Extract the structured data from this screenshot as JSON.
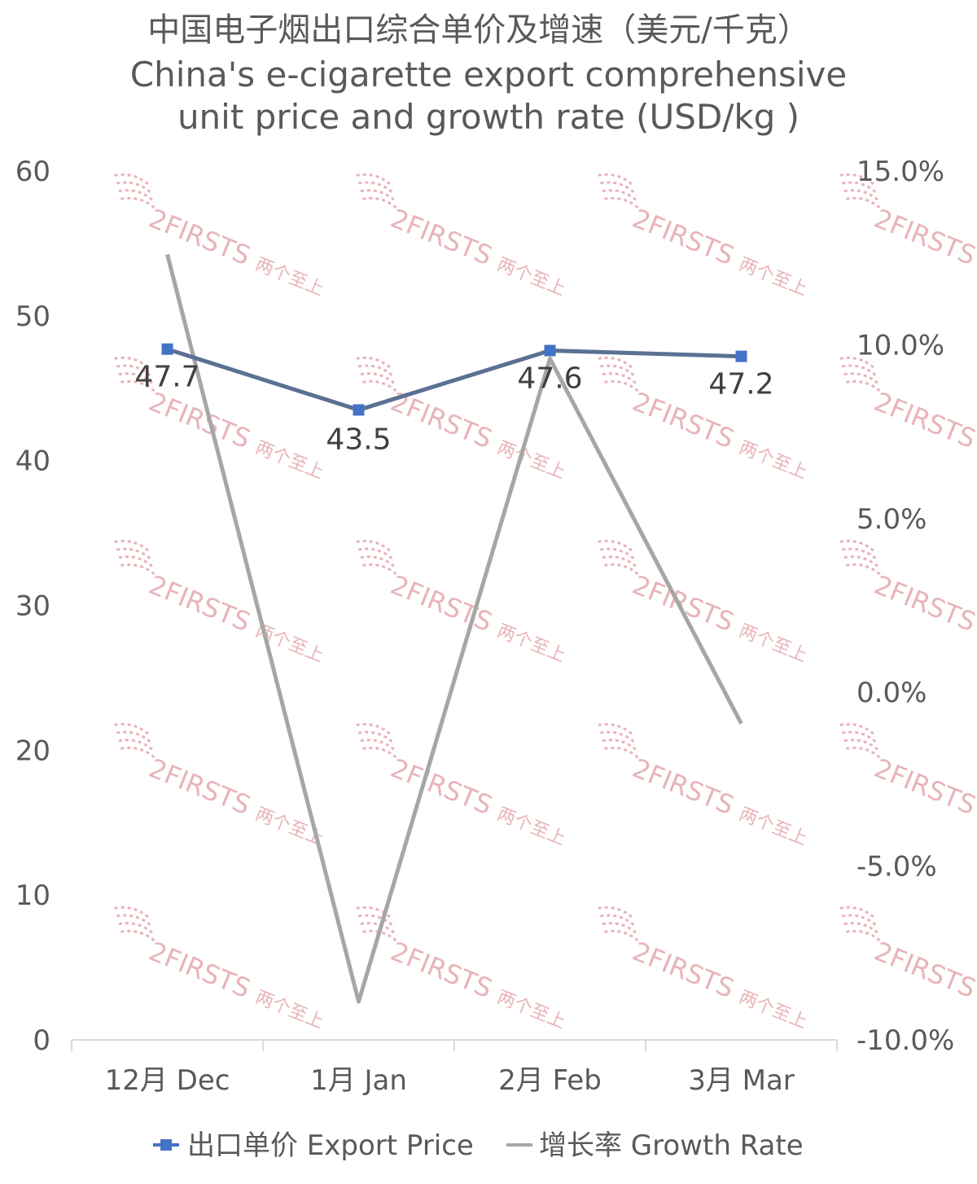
{
  "chart_data": {
    "type": "line",
    "title": [
      "中国电子烟出口综合单价及增速（美元/千克）",
      "China's e-cigarette export comprehensive",
      "unit price and growth rate (USD/kg )"
    ],
    "categories": [
      "12月 Dec",
      "1月 Jan",
      "2月 Feb",
      "3月 Mar"
    ],
    "series": [
      {
        "name": "出口单价 Export Price",
        "axis": "left",
        "values": [
          47.7,
          43.5,
          47.6,
          47.2
        ],
        "color": "#5a7094",
        "marker": "square",
        "marker_color": "#4472c4",
        "data_labels": [
          "47.7",
          "43.5",
          "47.6",
          "47.2"
        ]
      },
      {
        "name": "增长率 Growth Rate",
        "axis": "right",
        "values": [
          12.6,
          -8.9,
          9.6,
          -0.9
        ],
        "unit": "%",
        "color": "#a6a6a6"
      }
    ],
    "y_left": {
      "ylim": [
        0,
        60
      ],
      "ticks": [
        "0",
        "10",
        "20",
        "30",
        "40",
        "50",
        "60"
      ]
    },
    "y_right": {
      "ylim": [
        -10,
        15
      ],
      "ticks": [
        "-10.0%",
        "-5.0%",
        "0.0%",
        "5.0%",
        "10.0%",
        "15.0%"
      ]
    },
    "grid": false,
    "legend_position": "bottom"
  },
  "watermark": {
    "text": "2FIRSTS",
    "text_cn": "两个至上",
    "color": "#e8b4b8"
  }
}
